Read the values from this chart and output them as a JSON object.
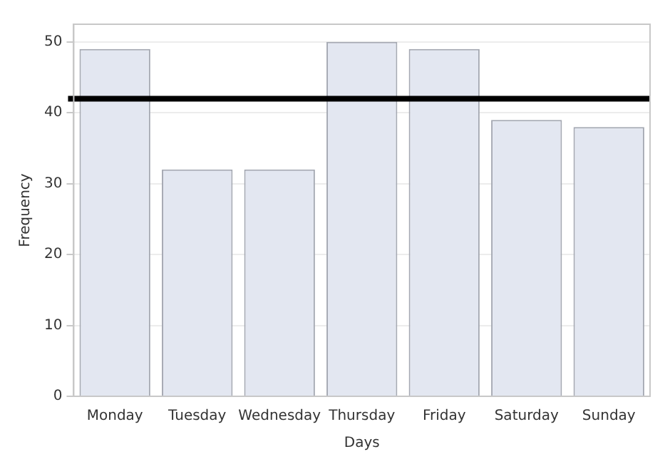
{
  "chart_data": {
    "type": "bar",
    "xlabel": "Days",
    "ylabel": "Frequency",
    "categories": [
      "Monday",
      "Tuesday",
      "Wednesday",
      "Thursday",
      "Friday",
      "Saturday",
      "Sunday"
    ],
    "values": [
      49,
      32,
      32,
      50,
      49,
      39,
      38
    ],
    "color": "#e3e7f1",
    "ylim": [
      0,
      52.5
    ],
    "yticks": [
      0,
      10,
      20,
      30,
      40,
      50
    ],
    "grid": "y",
    "legend": false,
    "ref_lines": [
      {
        "axis": "y",
        "value": 42,
        "color": "#000000"
      }
    ]
  }
}
